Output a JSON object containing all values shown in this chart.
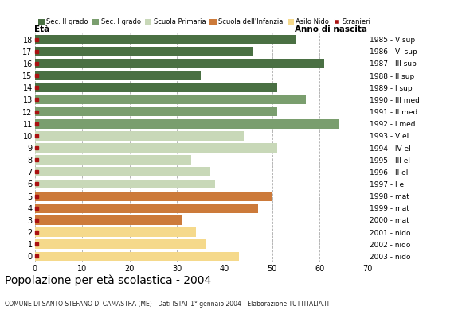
{
  "title": "Popolazione per età scolastica - 2004",
  "subtitle": "COMUNE DI SANTO STEFANO DI CAMASTRA (ME) - Dati ISTAT 1° gennaio 2004 - Elaborazione TUTTITALIA.IT",
  "xlabel_left": "Età",
  "xlabel_right": "Anno di nascita",
  "ages": [
    18,
    17,
    16,
    15,
    14,
    13,
    12,
    11,
    10,
    9,
    8,
    7,
    6,
    5,
    4,
    3,
    2,
    1,
    0
  ],
  "years": [
    "1985 - V sup",
    "1986 - VI sup",
    "1987 - III sup",
    "1988 - II sup",
    "1989 - I sup",
    "1990 - III med",
    "1991 - II med",
    "1992 - I med",
    "1993 - V el",
    "1994 - IV el",
    "1995 - III el",
    "1996 - II el",
    "1997 - I el",
    "1998 - mat",
    "1999 - mat",
    "2000 - mat",
    "2001 - nido",
    "2002 - nido",
    "2003 - nido"
  ],
  "values": [
    55,
    46,
    61,
    35,
    51,
    57,
    51,
    64,
    44,
    51,
    33,
    37,
    38,
    50,
    47,
    31,
    34,
    36,
    43
  ],
  "bar_colors": [
    "#4a7043",
    "#4a7043",
    "#4a7043",
    "#4a7043",
    "#4a7043",
    "#7a9e6e",
    "#7a9e6e",
    "#7a9e6e",
    "#c8d8b8",
    "#c8d8b8",
    "#c8d8b8",
    "#c8d8b8",
    "#c8d8b8",
    "#cc7a3a",
    "#cc7a3a",
    "#cc7a3a",
    "#f5d98b",
    "#f5d98b",
    "#f5d98b"
  ],
  "legend_labels": [
    "Sec. II grado",
    "Sec. I grado",
    "Scuola Primaria",
    "Scuola dell'Infanzia",
    "Asilo Nido",
    "Stranieri"
  ],
  "legend_colors": [
    "#4a7043",
    "#7a9e6e",
    "#c8d8b8",
    "#cc7a3a",
    "#f5d98b",
    "#aa1111"
  ],
  "stranieri_color": "#aa1111",
  "xlim": [
    0,
    70
  ],
  "xticks": [
    0,
    10,
    20,
    30,
    40,
    50,
    60,
    70
  ],
  "background_color": "#ffffff",
  "grid_color": "#aaaaaa",
  "bar_height": 0.78
}
